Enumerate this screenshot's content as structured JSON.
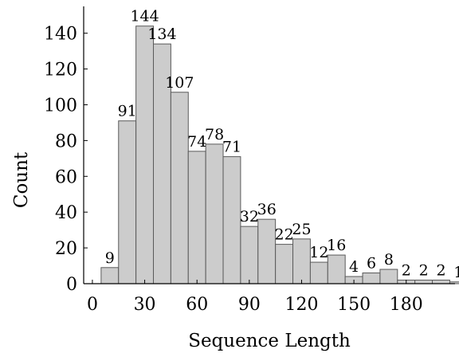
{
  "chart_data": {
    "type": "bar",
    "title": "",
    "xlabel": "Sequence Length",
    "ylabel": "Count",
    "bin_width": 10,
    "bin_start": [
      5,
      15,
      25,
      35,
      45,
      55,
      65,
      75,
      85,
      95,
      105,
      115,
      125,
      135,
      145,
      155,
      165,
      175,
      185,
      195,
      205
    ],
    "values": [
      9,
      91,
      144,
      134,
      107,
      74,
      78,
      71,
      32,
      36,
      22,
      25,
      12,
      16,
      4,
      6,
      8,
      2,
      2,
      2,
      1
    ],
    "data_labels": [
      "9",
      "91",
      "144",
      "134",
      "107",
      "74",
      "78",
      "71",
      "32",
      "36",
      "22",
      "25",
      "12",
      "16",
      "4",
      "6",
      "8",
      "2",
      "2",
      "2",
      "1"
    ],
    "xlim": [
      -5,
      208
    ],
    "ylim": [
      0,
      155
    ],
    "x_ticks": [
      0,
      30,
      60,
      90,
      120,
      150,
      180
    ],
    "x_tick_labels": [
      "0",
      "30",
      "60",
      "90",
      "120",
      "150",
      "180"
    ],
    "y_ticks": [
      0,
      20,
      40,
      60,
      80,
      100,
      120,
      140
    ],
    "y_tick_labels": [
      "0",
      "20",
      "40",
      "60",
      "80",
      "100",
      "120",
      "140"
    ],
    "grid": false,
    "legend": "none",
    "colors": {
      "bar_fill": "#cccccc",
      "bar_stroke": "#5a5a5a",
      "axis": "#000000"
    }
  }
}
